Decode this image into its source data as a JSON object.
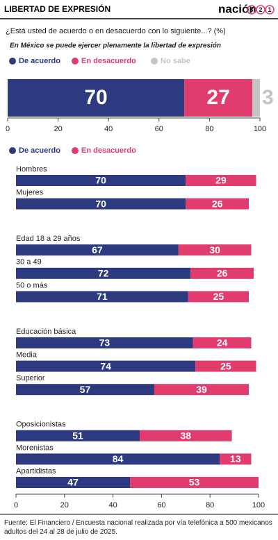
{
  "header": {
    "title": "LIBERTAD DE EXPRESIÓN",
    "logo": "nación",
    "logo_digits": [
      "3",
      "2",
      "1"
    ]
  },
  "question": "¿Está usted de acuerdo o en desacuerdo con lo siguiente...? (%)",
  "chart_data": [
    {
      "type": "bar",
      "orientation": "horizontal",
      "stacked": true,
      "title": "En México se puede ejercer plenamente la libertad de expresión",
      "categories": [
        null
      ],
      "series": [
        {
          "name": "De acuerdo",
          "color": "#2e3a80",
          "values": [
            70
          ]
        },
        {
          "name": "En desacuerdo",
          "color": "#e03c6e",
          "values": [
            27
          ]
        },
        {
          "name": "No sabe",
          "color": "#c4c4c4",
          "values": [
            3
          ]
        }
      ],
      "xlim": [
        0,
        100
      ],
      "xticks": [
        0,
        20,
        40,
        60,
        80,
        100
      ]
    },
    {
      "type": "bar",
      "orientation": "horizontal",
      "stacked": true,
      "categories": [
        "Hombres",
        "Mujeres",
        "Edad 18 a 29 años",
        "30 a 49",
        "50 o más",
        "Educación básica",
        "Media",
        "Superior",
        "Oposicionistas",
        "Morenistas",
        "Apartidistas"
      ],
      "series": [
        {
          "name": "De acuerdo",
          "color": "#2e3a80",
          "values": [
            70,
            70,
            67,
            72,
            71,
            73,
            74,
            57,
            51,
            84,
            47
          ]
        },
        {
          "name": "En desacuerdo",
          "color": "#e03c6e",
          "values": [
            29,
            26,
            30,
            26,
            25,
            24,
            25,
            39,
            38,
            13,
            53
          ]
        }
      ],
      "xlim": [
        0,
        100
      ],
      "xticks": [
        0,
        20,
        40,
        60,
        80,
        100
      ]
    }
  ],
  "source": "Fuente: El Financiero / Encuesta nacional realizada por vía telefónica a 500 mexicanos adultos del 24 al 28 de julio de 2025."
}
